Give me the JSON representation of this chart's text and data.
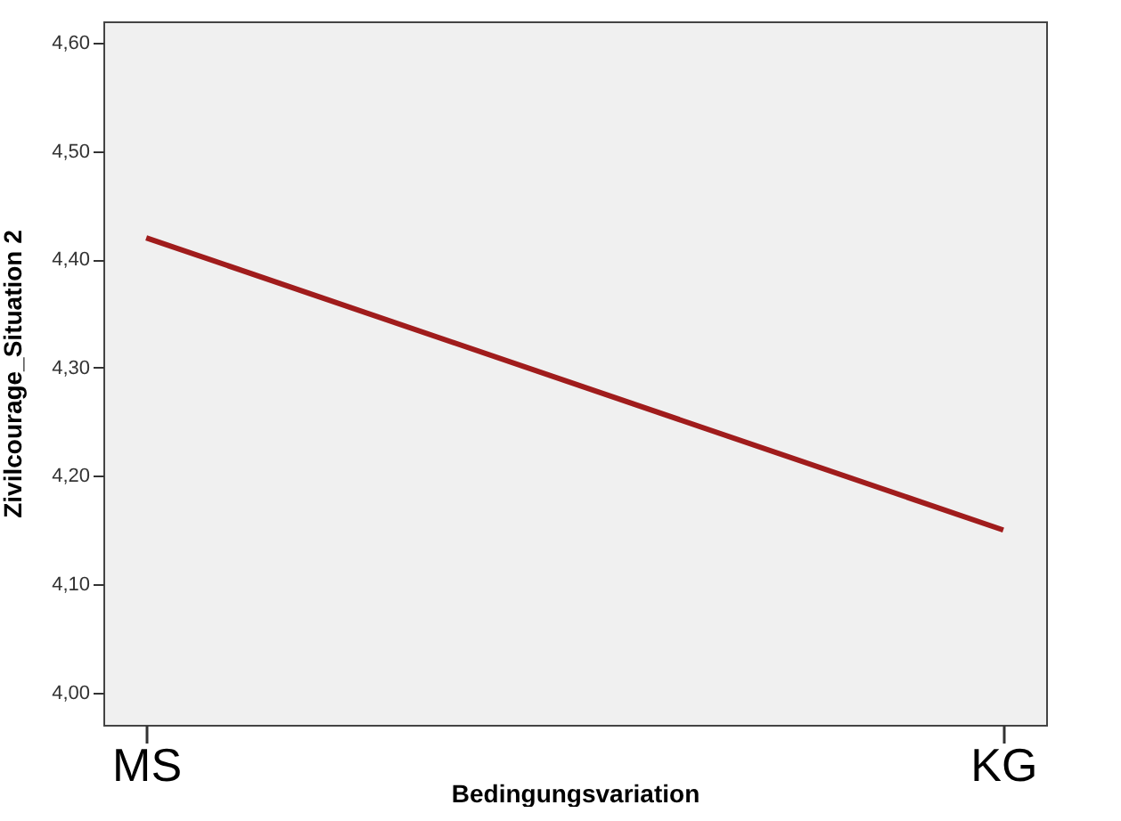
{
  "chart_data": {
    "type": "line",
    "xlabel": "Bedingungsvariation",
    "ylabel": "Zivilcourage_Situation 2",
    "categories": [
      "MS",
      "KG"
    ],
    "series": [
      {
        "color": "#a01c1c",
        "values": [
          4.42,
          4.15
        ]
      }
    ],
    "ylim": [
      3.97,
      4.62
    ],
    "yticks": [
      {
        "value": 4.0,
        "label": "4,00"
      },
      {
        "value": 4.1,
        "label": "4,10"
      },
      {
        "value": 4.2,
        "label": "4,20"
      },
      {
        "value": 4.3,
        "label": "4,30"
      },
      {
        "value": 4.4,
        "label": "4,40"
      },
      {
        "value": 4.5,
        "label": "4,50"
      },
      {
        "value": 4.6,
        "label": "4,60"
      }
    ],
    "grid": false,
    "legend": false,
    "marker": "none",
    "line_style": "solid"
  }
}
